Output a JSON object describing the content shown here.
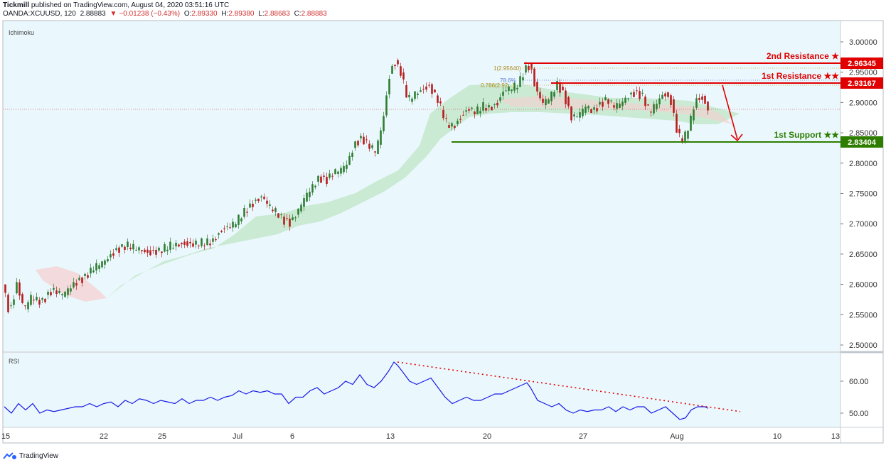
{
  "header": {
    "publisher": "Tickmill",
    "published_text": "published on TradingView.com, August 04, 2020 03:51:16 UTC",
    "symbol": "OANDA:XCUUSD, 120",
    "last": "2.88883",
    "change_arrow": "▼",
    "change": "−0.01238 (−0.43%)",
    "open_label": "O:",
    "open": "2.89330",
    "high_label": "H:",
    "high": "2.89380",
    "low_label": "L:",
    "low": "2.88683",
    "close_label": "C:",
    "close": "2.88883"
  },
  "footer": {
    "brand": "TradingView",
    "logo_icon": "tradingview-logo-icon"
  },
  "colors": {
    "pane_bg": "#eaf8fd",
    "up": "#2e7d32",
    "down": "#b71c1c",
    "resistance": "#e00000",
    "support": "#2e7d00",
    "rsi": "#1a1ae6",
    "cloud_bull": "#bfe6c6",
    "cloud_bear": "#f6cfcf"
  },
  "chart_data": [
    {
      "type": "candlestick",
      "indicator_label": "Ichimoku",
      "ylim": [
        2.49,
        3.02
      ],
      "y_ticks": [
        "3.00000",
        "2.95000",
        "2.90000",
        "2.85000",
        "2.80000",
        "2.75000",
        "2.70000",
        "2.65000",
        "2.60000",
        "2.55000",
        "2.50000"
      ],
      "x_ticks": [
        "15",
        "22",
        "25",
        "Jul",
        "6",
        "13",
        "20",
        "27",
        "Aug",
        "10",
        "13"
      ],
      "price_path": [
        [
          0,
          2.6
        ],
        [
          10,
          2.55
        ],
        [
          20,
          2.6
        ],
        [
          30,
          2.56
        ],
        [
          40,
          2.58
        ],
        [
          55,
          2.57
        ],
        [
          70,
          2.59
        ],
        [
          85,
          2.585
        ],
        [
          100,
          2.6
        ],
        [
          115,
          2.61
        ],
        [
          130,
          2.63
        ],
        [
          145,
          2.64
        ],
        [
          160,
          2.655
        ],
        [
          175,
          2.665
        ],
        [
          190,
          2.66
        ],
        [
          205,
          2.65
        ],
        [
          220,
          2.655
        ],
        [
          235,
          2.665
        ],
        [
          250,
          2.665
        ],
        [
          265,
          2.665
        ],
        [
          280,
          2.67
        ],
        [
          295,
          2.67
        ],
        [
          310,
          2.69
        ],
        [
          325,
          2.7
        ],
        [
          340,
          2.72
        ],
        [
          355,
          2.735
        ],
        [
          365,
          2.745
        ],
        [
          375,
          2.73
        ],
        [
          385,
          2.72
        ],
        [
          395,
          2.705
        ],
        [
          405,
          2.7
        ],
        [
          415,
          2.72
        ],
        [
          425,
          2.745
        ],
        [
          435,
          2.76
        ],
        [
          445,
          2.775
        ],
        [
          455,
          2.77
        ],
        [
          465,
          2.785
        ],
        [
          475,
          2.79
        ],
        [
          485,
          2.8
        ],
        [
          495,
          2.83
        ],
        [
          505,
          2.84
        ],
        [
          515,
          2.83
        ],
        [
          525,
          2.82
        ],
        [
          535,
          2.87
        ],
        [
          545,
          2.95
        ],
        [
          552,
          2.965
        ],
        [
          560,
          2.95
        ],
        [
          570,
          2.905
        ],
        [
          580,
          2.915
        ],
        [
          590,
          2.92
        ],
        [
          600,
          2.925
        ],
        [
          612,
          2.905
        ],
        [
          625,
          2.865
        ],
        [
          635,
          2.86
        ],
        [
          645,
          2.875
        ],
        [
          655,
          2.89
        ],
        [
          665,
          2.885
        ],
        [
          675,
          2.895
        ],
        [
          685,
          2.89
        ],
        [
          695,
          2.895
        ],
        [
          705,
          2.92
        ],
        [
          715,
          2.925
        ],
        [
          725,
          2.93
        ],
        [
          735,
          2.955
        ],
        [
          742,
          2.96
        ],
        [
          750,
          2.92
        ],
        [
          760,
          2.9
        ],
        [
          770,
          2.91
        ],
        [
          780,
          2.93
        ],
        [
          790,
          2.91
        ],
        [
          800,
          2.875
        ],
        [
          810,
          2.88
        ],
        [
          820,
          2.895
        ],
        [
          830,
          2.885
        ],
        [
          840,
          2.895
        ],
        [
          850,
          2.905
        ],
        [
          860,
          2.895
        ],
        [
          870,
          2.9
        ],
        [
          880,
          2.91
        ],
        [
          890,
          2.915
        ],
        [
          900,
          2.91
        ],
        [
          910,
          2.885
        ],
        [
          920,
          2.9
        ],
        [
          930,
          2.915
        ],
        [
          940,
          2.9
        ],
        [
          950,
          2.845
        ],
        [
          958,
          2.84
        ],
        [
          966,
          2.865
        ],
        [
          975,
          2.905
        ],
        [
          985,
          2.905
        ],
        [
          990,
          2.89
        ]
      ],
      "levels": [
        {
          "name": "2nd Resistance ★",
          "value": 2.96345,
          "label": "2.96345"
        },
        {
          "name": "1st Resistance ★★",
          "value": 2.93167,
          "label": "2.93167"
        },
        {
          "name": "1st Support ★★",
          "value": 2.83404,
          "label": "2.83404"
        }
      ],
      "last_price": 2.88883,
      "fib_labels": [
        "1(2.95640)",
        "78.6%",
        "0.786(2.92...)"
      ]
    },
    {
      "type": "line",
      "title": "RSI",
      "ylim": [
        44,
        67
      ],
      "y_ticks": [
        "60.00",
        "50.00"
      ],
      "values": [
        [
          0,
          52
        ],
        [
          10,
          50
        ],
        [
          20,
          53
        ],
        [
          30,
          51
        ],
        [
          40,
          53
        ],
        [
          50,
          50
        ],
        [
          60,
          51
        ],
        [
          70,
          50.5
        ],
        [
          80,
          51
        ],
        [
          90,
          51.5
        ],
        [
          100,
          52
        ],
        [
          110,
          52
        ],
        [
          120,
          53
        ],
        [
          130,
          52
        ],
        [
          140,
          53
        ],
        [
          150,
          53.5
        ],
        [
          160,
          52
        ],
        [
          170,
          54
        ],
        [
          180,
          53
        ],
        [
          190,
          54.5
        ],
        [
          200,
          54
        ],
        [
          210,
          53
        ],
        [
          220,
          54
        ],
        [
          230,
          53.5
        ],
        [
          240,
          53
        ],
        [
          250,
          54.5
        ],
        [
          260,
          53
        ],
        [
          270,
          54
        ],
        [
          280,
          54
        ],
        [
          290,
          55
        ],
        [
          300,
          54
        ],
        [
          310,
          55
        ],
        [
          320,
          55.5
        ],
        [
          330,
          57
        ],
        [
          340,
          56
        ],
        [
          350,
          57
        ],
        [
          360,
          56.5
        ],
        [
          370,
          57
        ],
        [
          380,
          56
        ],
        [
          390,
          56
        ],
        [
          400,
          53
        ],
        [
          410,
          55
        ],
        [
          420,
          55
        ],
        [
          430,
          57
        ],
        [
          440,
          58
        ],
        [
          450,
          56
        ],
        [
          460,
          57
        ],
        [
          470,
          58
        ],
        [
          480,
          60
        ],
        [
          490,
          59
        ],
        [
          500,
          62
        ],
        [
          510,
          59
        ],
        [
          520,
          58
        ],
        [
          530,
          60
        ],
        [
          540,
          63
        ],
        [
          548,
          66
        ],
        [
          553,
          65
        ],
        [
          560,
          63
        ],
        [
          570,
          60
        ],
        [
          580,
          59
        ],
        [
          590,
          60
        ],
        [
          600,
          61
        ],
        [
          610,
          58
        ],
        [
          620,
          55
        ],
        [
          630,
          53
        ],
        [
          640,
          54
        ],
        [
          650,
          55
        ],
        [
          660,
          54
        ],
        [
          670,
          54
        ],
        [
          680,
          55
        ],
        [
          690,
          56
        ],
        [
          700,
          56
        ],
        [
          710,
          57
        ],
        [
          720,
          58
        ],
        [
          730,
          59
        ],
        [
          735,
          59.5
        ],
        [
          740,
          58
        ],
        [
          750,
          54
        ],
        [
          760,
          53
        ],
        [
          770,
          52
        ],
        [
          780,
          53
        ],
        [
          790,
          51
        ],
        [
          800,
          50
        ],
        [
          810,
          51
        ],
        [
          820,
          50.5
        ],
        [
          830,
          51
        ],
        [
          840,
          51
        ],
        [
          850,
          52
        ],
        [
          860,
          50.5
        ],
        [
          870,
          52
        ],
        [
          880,
          51
        ],
        [
          890,
          52
        ],
        [
          900,
          52
        ],
        [
          910,
          50
        ],
        [
          920,
          51
        ],
        [
          930,
          52
        ],
        [
          940,
          50
        ],
        [
          950,
          48
        ],
        [
          958,
          48.5
        ],
        [
          966,
          51
        ],
        [
          975,
          52
        ],
        [
          985,
          52
        ],
        [
          990,
          51.5
        ]
      ],
      "trendline": [
        [
          553,
          66
        ],
        [
          1035,
          50.5
        ]
      ]
    }
  ]
}
